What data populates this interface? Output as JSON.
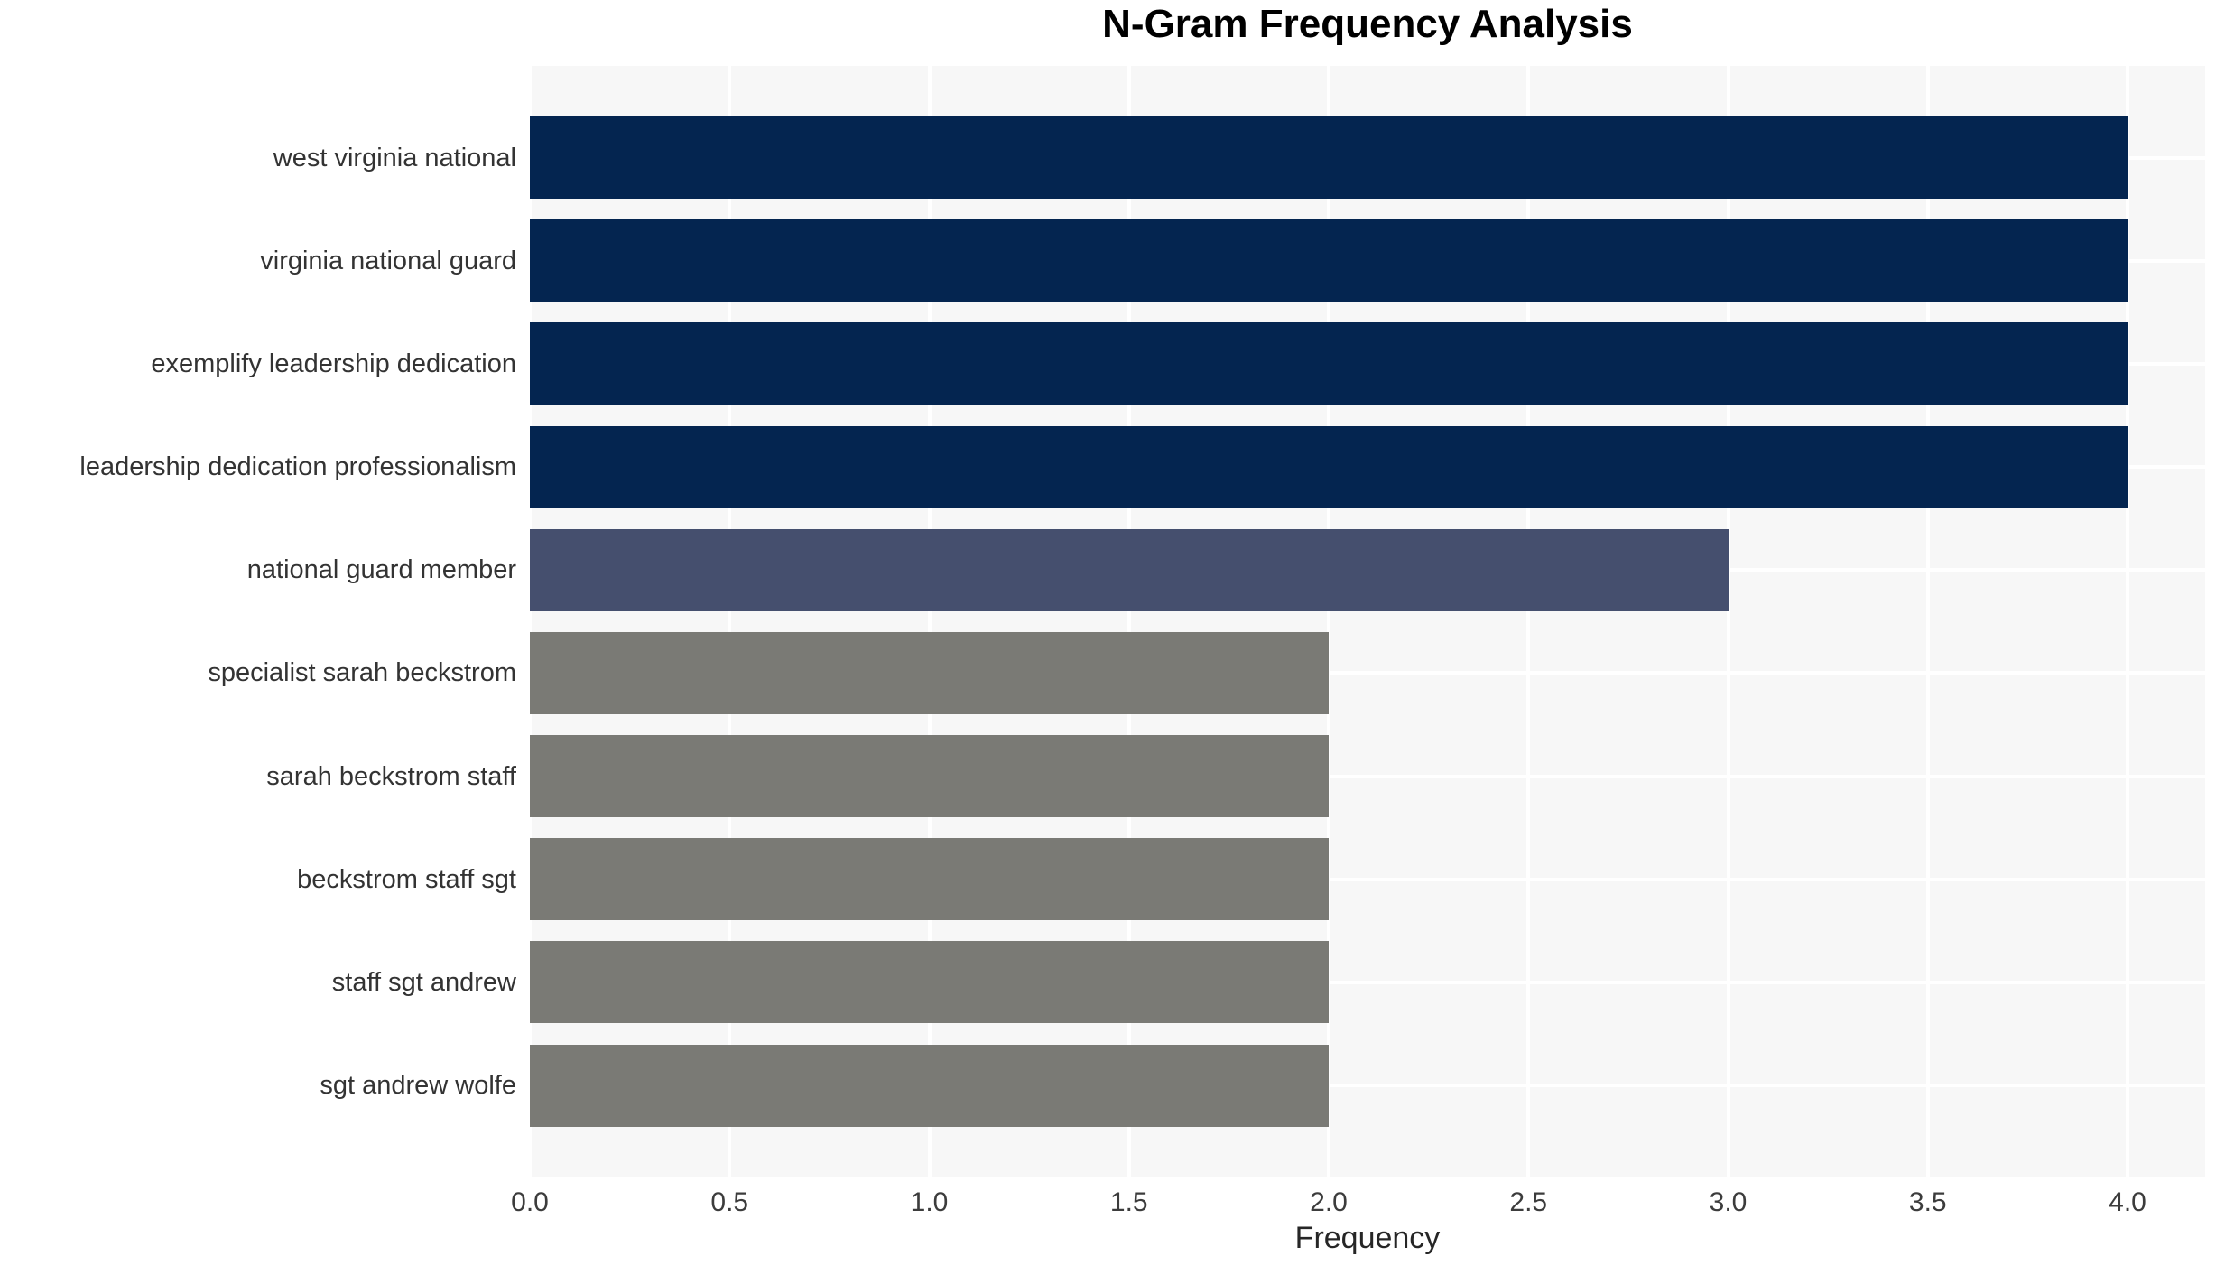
{
  "chart_data": {
    "type": "bar",
    "orientation": "horizontal",
    "title": "N-Gram Frequency Analysis",
    "xlabel": "Frequency",
    "ylabel": "",
    "categories": [
      "west virginia national",
      "virginia national guard",
      "exemplify leadership dedication",
      "leadership dedication professionalism",
      "national guard member",
      "specialist sarah beckstrom",
      "sarah beckstrom staff",
      "beckstrom staff sgt",
      "staff sgt andrew",
      "sgt andrew wolfe"
    ],
    "values": [
      4.0,
      4.0,
      4.0,
      4.0,
      3.0,
      2.0,
      2.0,
      2.0,
      2.0,
      2.0
    ],
    "bar_colors": [
      "#042550",
      "#042550",
      "#042550",
      "#042550",
      "#454f6e",
      "#7a7a75",
      "#7a7a75",
      "#7a7a75",
      "#7a7a75",
      "#7a7a75"
    ],
    "x_ticks": [
      "0.0",
      "0.5",
      "1.0",
      "1.5",
      "2.0",
      "2.5",
      "3.0",
      "3.5",
      "4.0"
    ],
    "xlim": [
      0,
      4.2
    ],
    "grid": true,
    "legend": "none",
    "plot_background": "#f7f7f7",
    "grid_color": "#ffffff",
    "page_background": "#ffffff",
    "title_color": "#000000",
    "tick_color": "#3c3c3c",
    "label_color": "#333333"
  }
}
